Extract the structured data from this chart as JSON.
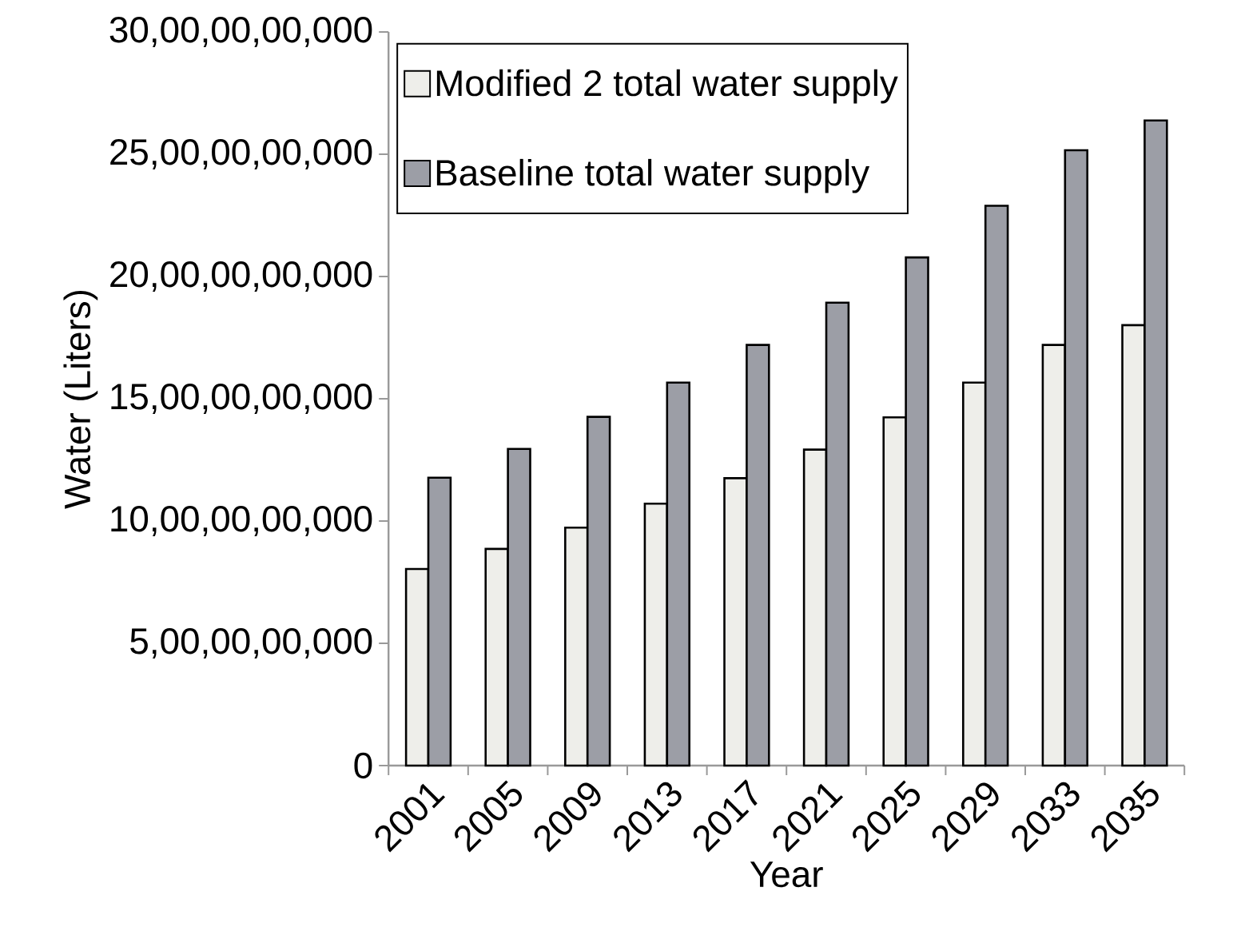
{
  "chart_data": {
    "type": "bar",
    "xlabel": "Year",
    "ylabel": "Water (Liters)",
    "categories": [
      "2001",
      "2005",
      "2009",
      "2013",
      "2017",
      "2021",
      "2025",
      "2029",
      "2033",
      "2035"
    ],
    "series": [
      {
        "name": "Modified 2 total water supply",
        "color": "#eeeeea",
        "values": [
          8040000000,
          8860000000,
          9730000000,
          10710000000,
          11750000000,
          12920000000,
          14240000000,
          15660000000,
          17200000000,
          18010000000
        ]
      },
      {
        "name": "Baseline total water supply",
        "color": "#9c9ea6",
        "values": [
          11770000000,
          12950000000,
          14260000000,
          15660000000,
          17200000000,
          18930000000,
          20780000000,
          22890000000,
          25160000000,
          26380000000
        ]
      }
    ],
    "ylim": [
      0,
      30000000000
    ],
    "yticks": [
      0,
      {
        "value": 5000000000,
        "label": "5,00,00,00,000"
      },
      {
        "value": 10000000000,
        "label": "10,00,00,00,000"
      },
      {
        "value": 15000000000,
        "label": "15,00,00,00,000"
      },
      {
        "value": 20000000000,
        "label": "20,00,00,00,000"
      },
      {
        "value": 25000000000,
        "label": "25,00,00,00,000"
      },
      {
        "value": 30000000000,
        "label": "30,00,00,00,000"
      }
    ],
    "legend": "top left",
    "grid": false
  }
}
